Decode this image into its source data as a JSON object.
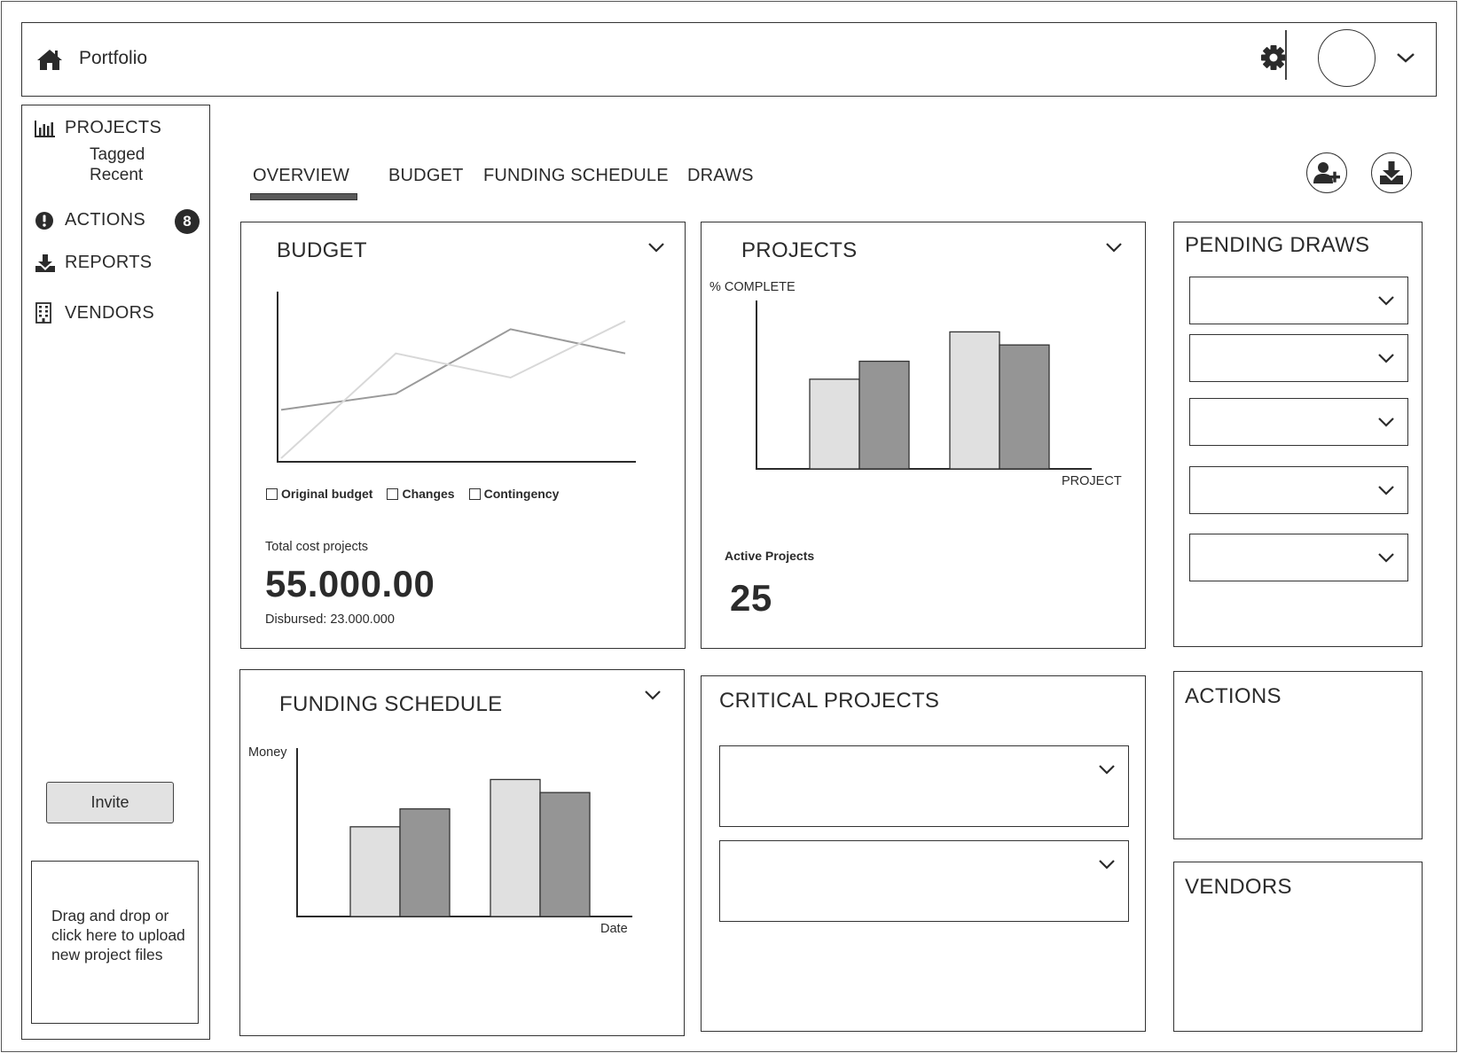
{
  "header": {
    "title": "Portfolio"
  },
  "sidebar": {
    "items": [
      {
        "label": "PROJECTS",
        "sub": [
          "Tagged",
          "Recent"
        ]
      },
      {
        "label": "ACTIONS",
        "badge": "8"
      },
      {
        "label": "REPORTS"
      },
      {
        "label": "VENDORS"
      }
    ],
    "invite_label": "Invite",
    "dropzone_text": "Drag and drop or click here to upload new project files"
  },
  "tabs": [
    {
      "label": "OVERVIEW",
      "active": true
    },
    {
      "label": "BUDGET"
    },
    {
      "label": "FUNDING SCHEDULE"
    },
    {
      "label": "DRAWS"
    }
  ],
  "budget_card": {
    "title": "BUDGET",
    "legend": [
      "Original budget",
      "Changes",
      "Contingency"
    ],
    "total_label": "Total cost projects",
    "total_value": "55.000.00",
    "disbursed": "Disbursed: 23.000.000"
  },
  "projects_card": {
    "title": "PROJECTS",
    "y_label": "% COMPLETE",
    "x_label": "PROJECT",
    "active_label": "Active Projects",
    "active_value": "25"
  },
  "pending_draws": {
    "title": "PENDING DRAWS",
    "rows": 5
  },
  "funding_card": {
    "title": "FUNDING SCHEDULE",
    "y_label": "Money",
    "x_label": "Date"
  },
  "critical_card": {
    "title": "CRITICAL PROJECTS",
    "rows": 2
  },
  "actions_card": {
    "title": "ACTIONS"
  },
  "vendors_card": {
    "title": "VENDORS"
  },
  "colors": {
    "bar_light": "#e0e0e0",
    "bar_dark": "#959595",
    "active_tab": "#5a5a5a"
  },
  "chart_data": [
    {
      "type": "line",
      "title": "BUDGET",
      "x": [
        0,
        1,
        2,
        3
      ],
      "series": [
        {
          "values": [
            0.3,
            0.4,
            0.8,
            0.65
          ],
          "color": "#9a9a9a"
        },
        {
          "values": [
            0.0,
            0.65,
            0.5,
            0.85
          ],
          "color": "#d8d8d8"
        }
      ],
      "ylim": [
        0,
        1
      ]
    },
    {
      "type": "bar",
      "title": "PROJECTS",
      "ylabel": "% COMPLETE",
      "xlabel": "PROJECT",
      "groups": 2,
      "series": [
        {
          "values": [
            55,
            84
          ],
          "color": "#e0e0e0"
        },
        {
          "values": [
            66,
            76
          ],
          "color": "#959595"
        }
      ],
      "ylim": [
        0,
        100
      ]
    },
    {
      "type": "bar",
      "title": "FUNDING SCHEDULE",
      "ylabel": "Money",
      "xlabel": "Date",
      "groups": 2,
      "series": [
        {
          "values": [
            55,
            84
          ],
          "color": "#e0e0e0"
        },
        {
          "values": [
            66,
            76
          ],
          "color": "#959595"
        }
      ],
      "ylim": [
        0,
        100
      ]
    }
  ]
}
